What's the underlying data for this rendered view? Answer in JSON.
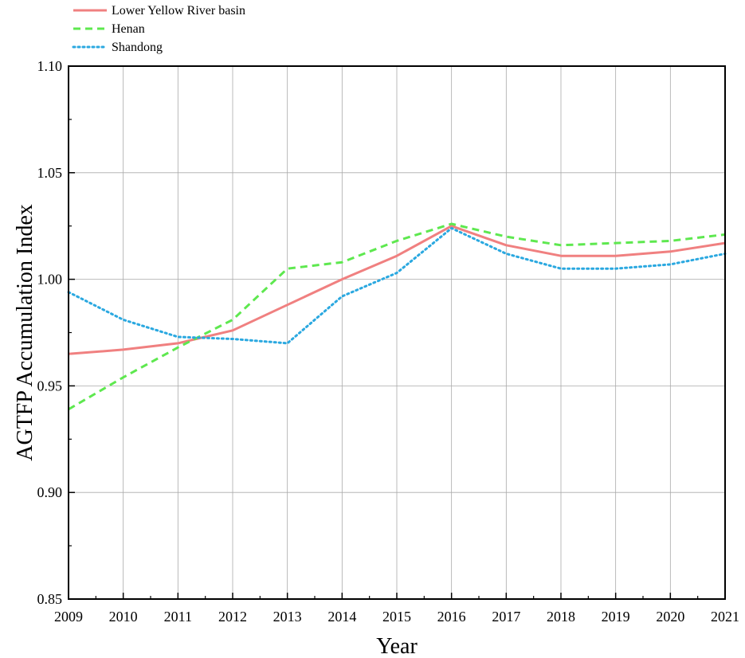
{
  "chart_data": {
    "type": "line",
    "title": "",
    "xlabel": "Year",
    "ylabel": "AGTFP Accumulation Index",
    "x": [
      2009,
      2010,
      2011,
      2012,
      2013,
      2014,
      2015,
      2016,
      2017,
      2018,
      2019,
      2020,
      2021
    ],
    "xlim": [
      2009,
      2021
    ],
    "ylim": [
      0.85,
      1.1
    ],
    "y_ticks": [
      "0.85",
      "0.90",
      "0.95",
      "1.00",
      "1.05",
      "1.10"
    ],
    "grid": true,
    "legend_position": "top-left, above plot",
    "series": [
      {
        "name": "Lower Yellow River basin",
        "color": "#f08080",
        "style": "solid",
        "values": [
          0.965,
          0.967,
          0.97,
          0.976,
          0.988,
          1.0,
          1.011,
          1.025,
          1.016,
          1.011,
          1.011,
          1.013,
          1.017
        ]
      },
      {
        "name": "Henan",
        "color": "#5ee84f",
        "style": "dashed",
        "values": [
          0.939,
          0.954,
          0.968,
          0.981,
          1.005,
          1.008,
          1.018,
          1.026,
          1.02,
          1.016,
          1.017,
          1.018,
          1.021
        ]
      },
      {
        "name": "Shandong",
        "color": "#2aa8e0",
        "style": "dotted",
        "values": [
          0.994,
          0.981,
          0.973,
          0.972,
          0.97,
          0.992,
          1.003,
          1.024,
          1.012,
          1.005,
          1.005,
          1.007,
          1.012
        ]
      }
    ]
  }
}
